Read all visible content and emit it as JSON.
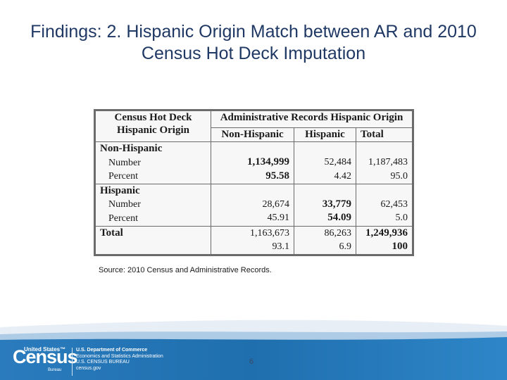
{
  "slide": {
    "title": "Findings: 2. Hispanic Origin Match between AR and 2010 Census Hot Deck Imputation",
    "source": "Source: 2010 Census and Administrative Records.",
    "page_number": "6"
  },
  "table": {
    "stub_header": "Census Hot Deck Hispanic Origin",
    "group_header": "Administrative Records Hispanic Origin",
    "columns": [
      "Non-Hispanic",
      "Hispanic",
      "Total"
    ],
    "rows": {
      "non_hispanic": {
        "label": "Non-Hispanic",
        "number_label": "Number",
        "percent_label": "Percent",
        "number": [
          "1,134,999",
          "52,484",
          "1,187,483"
        ],
        "percent": [
          "95.58",
          "4.42",
          "95.0"
        ]
      },
      "hispanic": {
        "label": "Hispanic",
        "number_label": "Number",
        "percent_label": "Percent",
        "number": [
          "28,674",
          "33,779",
          "62,453"
        ],
        "percent": [
          "45.91",
          "54.09",
          "5.0"
        ]
      },
      "total": {
        "label": "Total",
        "number": [
          "1,163,673",
          "86,263",
          "1,249,936"
        ],
        "percent": [
          "93.1",
          "6.9",
          "100"
        ]
      }
    }
  },
  "footer": {
    "logo_top": "United States™",
    "logo_word": "Census",
    "logo_bureau": "Bureau",
    "dept_line1": "U.S. Department of Commerce",
    "dept_line2": "Economics and Statistics Administration",
    "dept_line3": "U.S. CENSUS BUREAU",
    "dept_line4": "census.gov",
    "band_color": "#1f6fae",
    "accent_color": "#5ba4d6"
  }
}
